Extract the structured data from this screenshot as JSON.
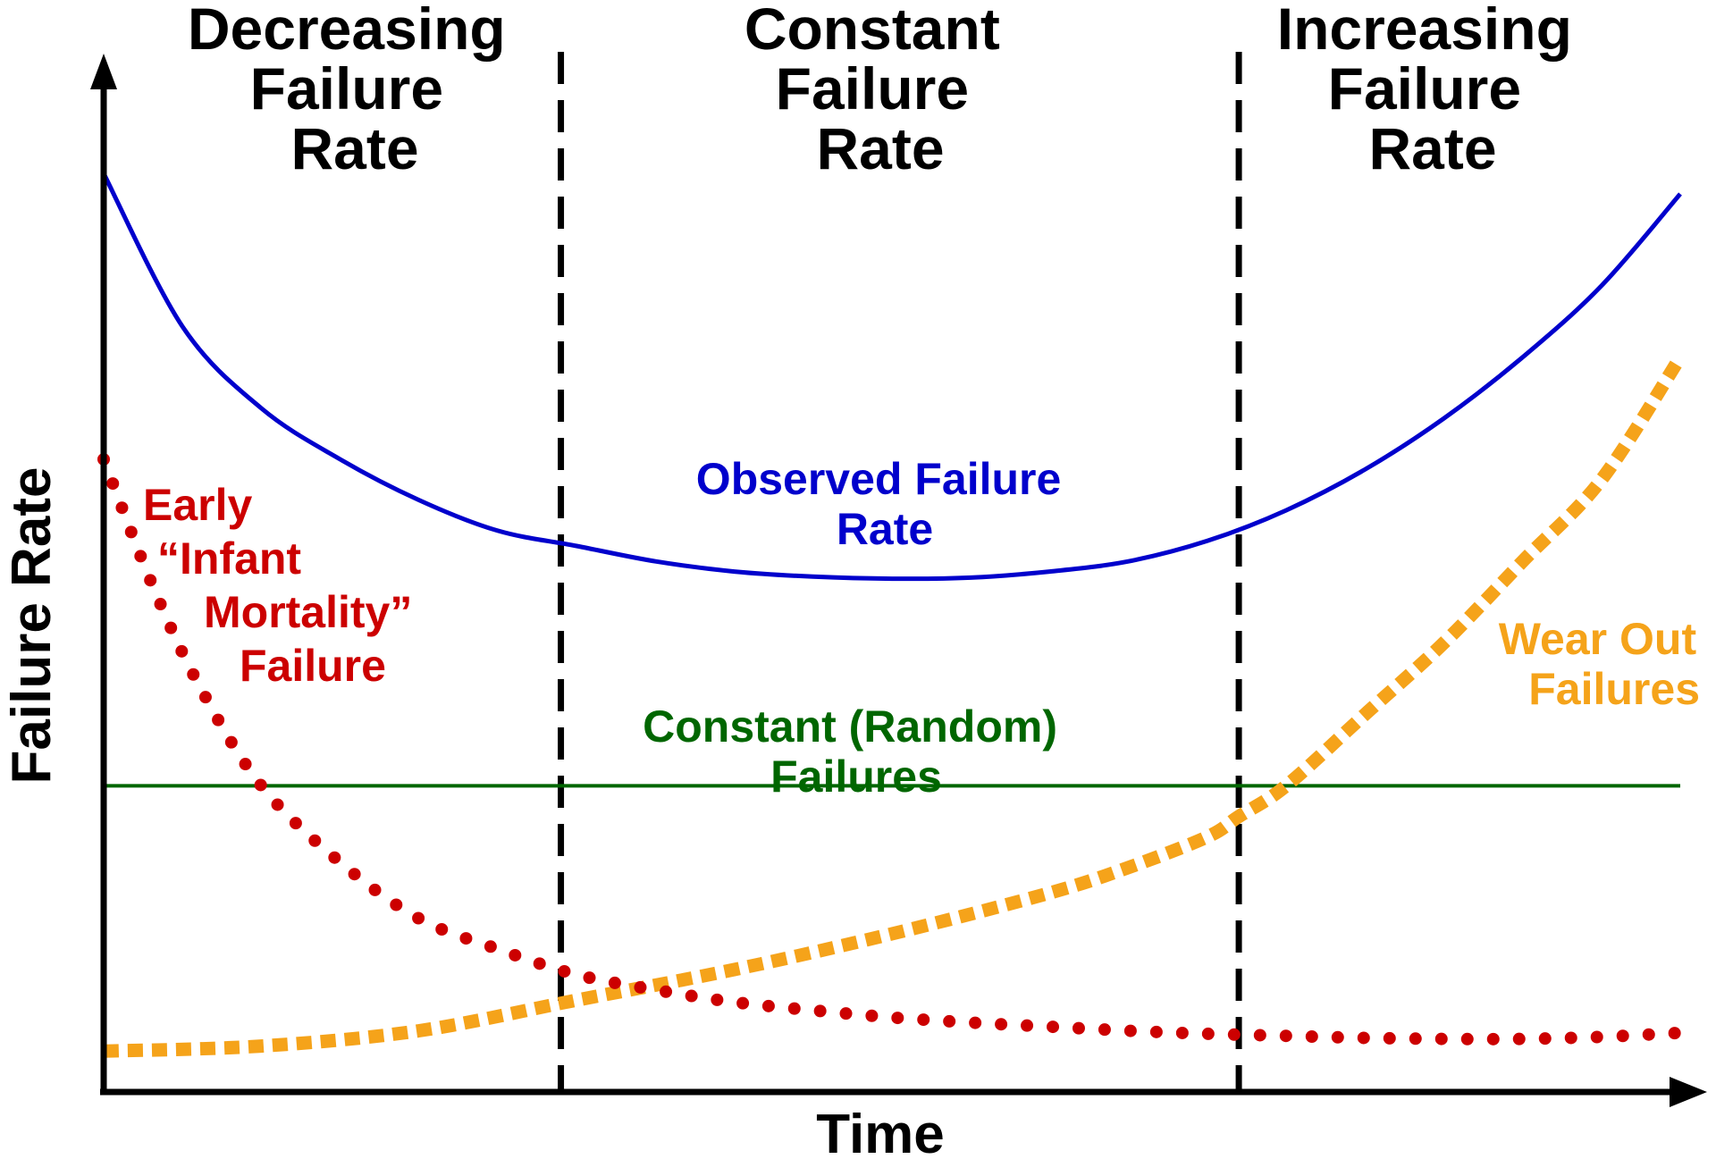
{
  "chart_data": {
    "type": "line",
    "title": "",
    "xlabel": "Time",
    "ylabel": "Failure Rate",
    "regions": [
      {
        "name": "decreasing",
        "lines": [
          "Decreasing",
          "Failure",
          "Rate"
        ],
        "x_range": [
          0,
          0.29
        ]
      },
      {
        "name": "constant",
        "lines": [
          "Constant",
          "Failure",
          "Rate"
        ],
        "x_range": [
          0.29,
          0.72
        ]
      },
      {
        "name": "increasing",
        "lines": [
          "Increasing",
          "Failure",
          "Rate"
        ],
        "x_range": [
          0.72,
          1.0
        ]
      }
    ],
    "xlim": [
      0,
      1.0
    ],
    "ylim": [
      0,
      1.0
    ],
    "ticks": "none",
    "grid": false,
    "series": [
      {
        "key": "observed",
        "lines": [
          "Observed Failure",
          "Rate"
        ],
        "color": "#0000cc",
        "style": "solid",
        "x": [
          0.0,
          0.05,
          0.1,
          0.15,
          0.2,
          0.25,
          0.3,
          0.35,
          0.4,
          0.45,
          0.5,
          0.55,
          0.6,
          0.65,
          0.7,
          0.75,
          0.8,
          0.85,
          0.9,
          0.95,
          1.0
        ],
        "y": [
          0.9,
          0.75,
          0.67,
          0.62,
          0.58,
          0.55,
          0.535,
          0.52,
          0.51,
          0.505,
          0.503,
          0.504,
          0.51,
          0.52,
          0.54,
          0.57,
          0.61,
          0.66,
          0.72,
          0.79,
          0.88
        ]
      },
      {
        "key": "infant",
        "lines": [
          "Early",
          "“Infant",
          "Mortality”",
          "Failure"
        ],
        "color": "#cc0000",
        "style": "dotted",
        "x": [
          0.0,
          0.03,
          0.06,
          0.1,
          0.15,
          0.2,
          0.25,
          0.3,
          0.35,
          0.4,
          0.45,
          0.5,
          0.55,
          0.6,
          0.65,
          0.7,
          0.75,
          0.8,
          0.85,
          0.9,
          0.95,
          1.0
        ],
        "y": [
          0.62,
          0.5,
          0.4,
          0.3,
          0.225,
          0.17,
          0.14,
          0.115,
          0.1,
          0.088,
          0.08,
          0.073,
          0.068,
          0.064,
          0.06,
          0.057,
          0.055,
          0.053,
          0.052,
          0.052,
          0.054,
          0.058
        ]
      },
      {
        "key": "constant",
        "lines": [
          "Constant (Random)",
          "Failures"
        ],
        "color": "#006600",
        "style": "solid",
        "x": [
          0.0,
          1.0
        ],
        "y": [
          0.3,
          0.3
        ]
      },
      {
        "key": "wear",
        "lines": [
          "Wear Out",
          "Failures"
        ],
        "color": "#f5a31a",
        "style": "dashed",
        "x": [
          0.0,
          0.1,
          0.2,
          0.3,
          0.4,
          0.5,
          0.6,
          0.65,
          0.7,
          0.72,
          0.75,
          0.8,
          0.85,
          0.9,
          0.95,
          1.0
        ],
        "y": [
          0.04,
          0.045,
          0.06,
          0.09,
          0.12,
          0.155,
          0.195,
          0.22,
          0.25,
          0.27,
          0.3,
          0.37,
          0.44,
          0.52,
          0.6,
          0.72
        ]
      }
    ]
  }
}
